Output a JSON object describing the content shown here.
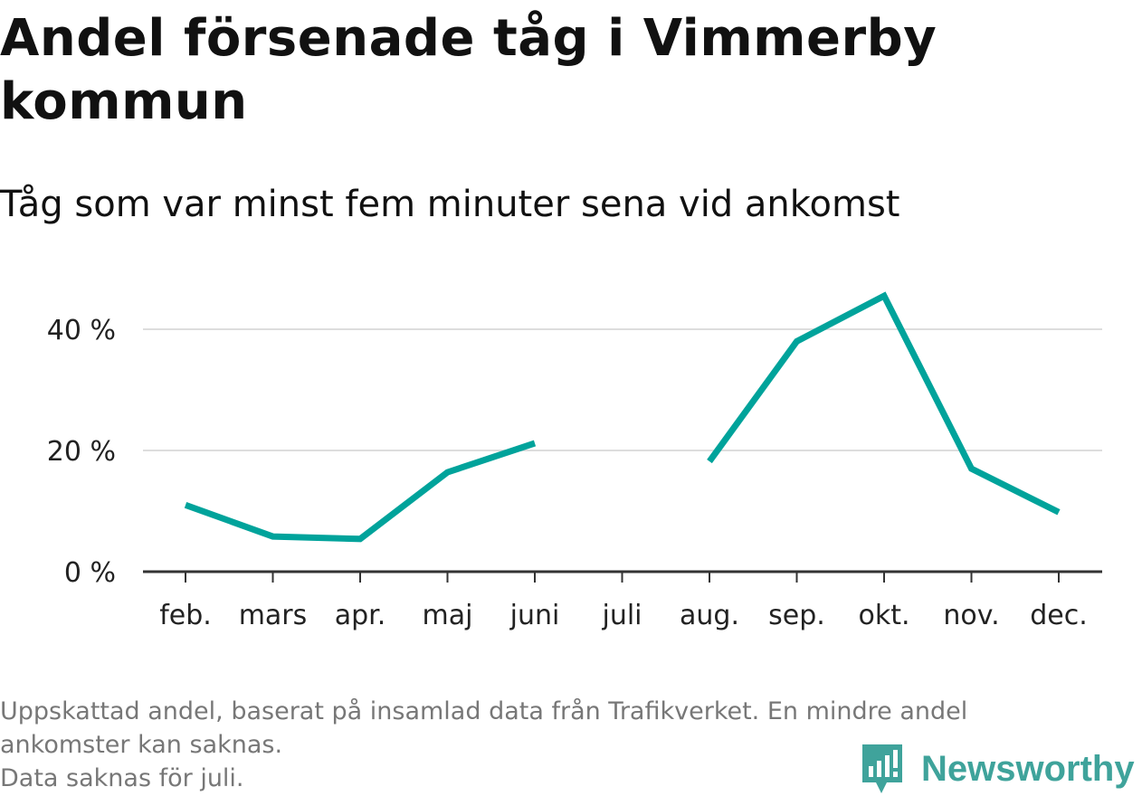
{
  "title": "Andel försenade tåg i Vimmerby kommun",
  "subtitle": "Tåg som var minst fem minuter sena vid ankomst",
  "footnote": {
    "line1": "Uppskattad andel, baserat på insamlad data från Trafikverket. En mindre andel",
    "line2": "ankomster kan saknas.",
    "line3": "Data saknas för juli."
  },
  "brand": {
    "name": "Newsworthy",
    "icon": "newsworthy-logo-icon",
    "color": "#3fa39b"
  },
  "chart_data": {
    "type": "line",
    "categories": [
      "feb.",
      "mars",
      "apr.",
      "maj",
      "juni",
      "juli",
      "aug.",
      "sep.",
      "okt.",
      "nov.",
      "dec."
    ],
    "series": [
      {
        "values": [
          11,
          5.8,
          5.4,
          16.4,
          21.2,
          null,
          18.2,
          38,
          45.5,
          17,
          9.8
        ],
        "color": "#00a39b"
      }
    ],
    "y_ticks": [
      {
        "value": 0,
        "label": "0 %"
      },
      {
        "value": 20,
        "label": "20 %"
      },
      {
        "value": 40,
        "label": "40 %"
      }
    ],
    "ylim": [
      0,
      50
    ],
    "grid": true,
    "gridColor": "#dddddd",
    "axisColor": "#333333",
    "missing": [
      "juli"
    ]
  }
}
